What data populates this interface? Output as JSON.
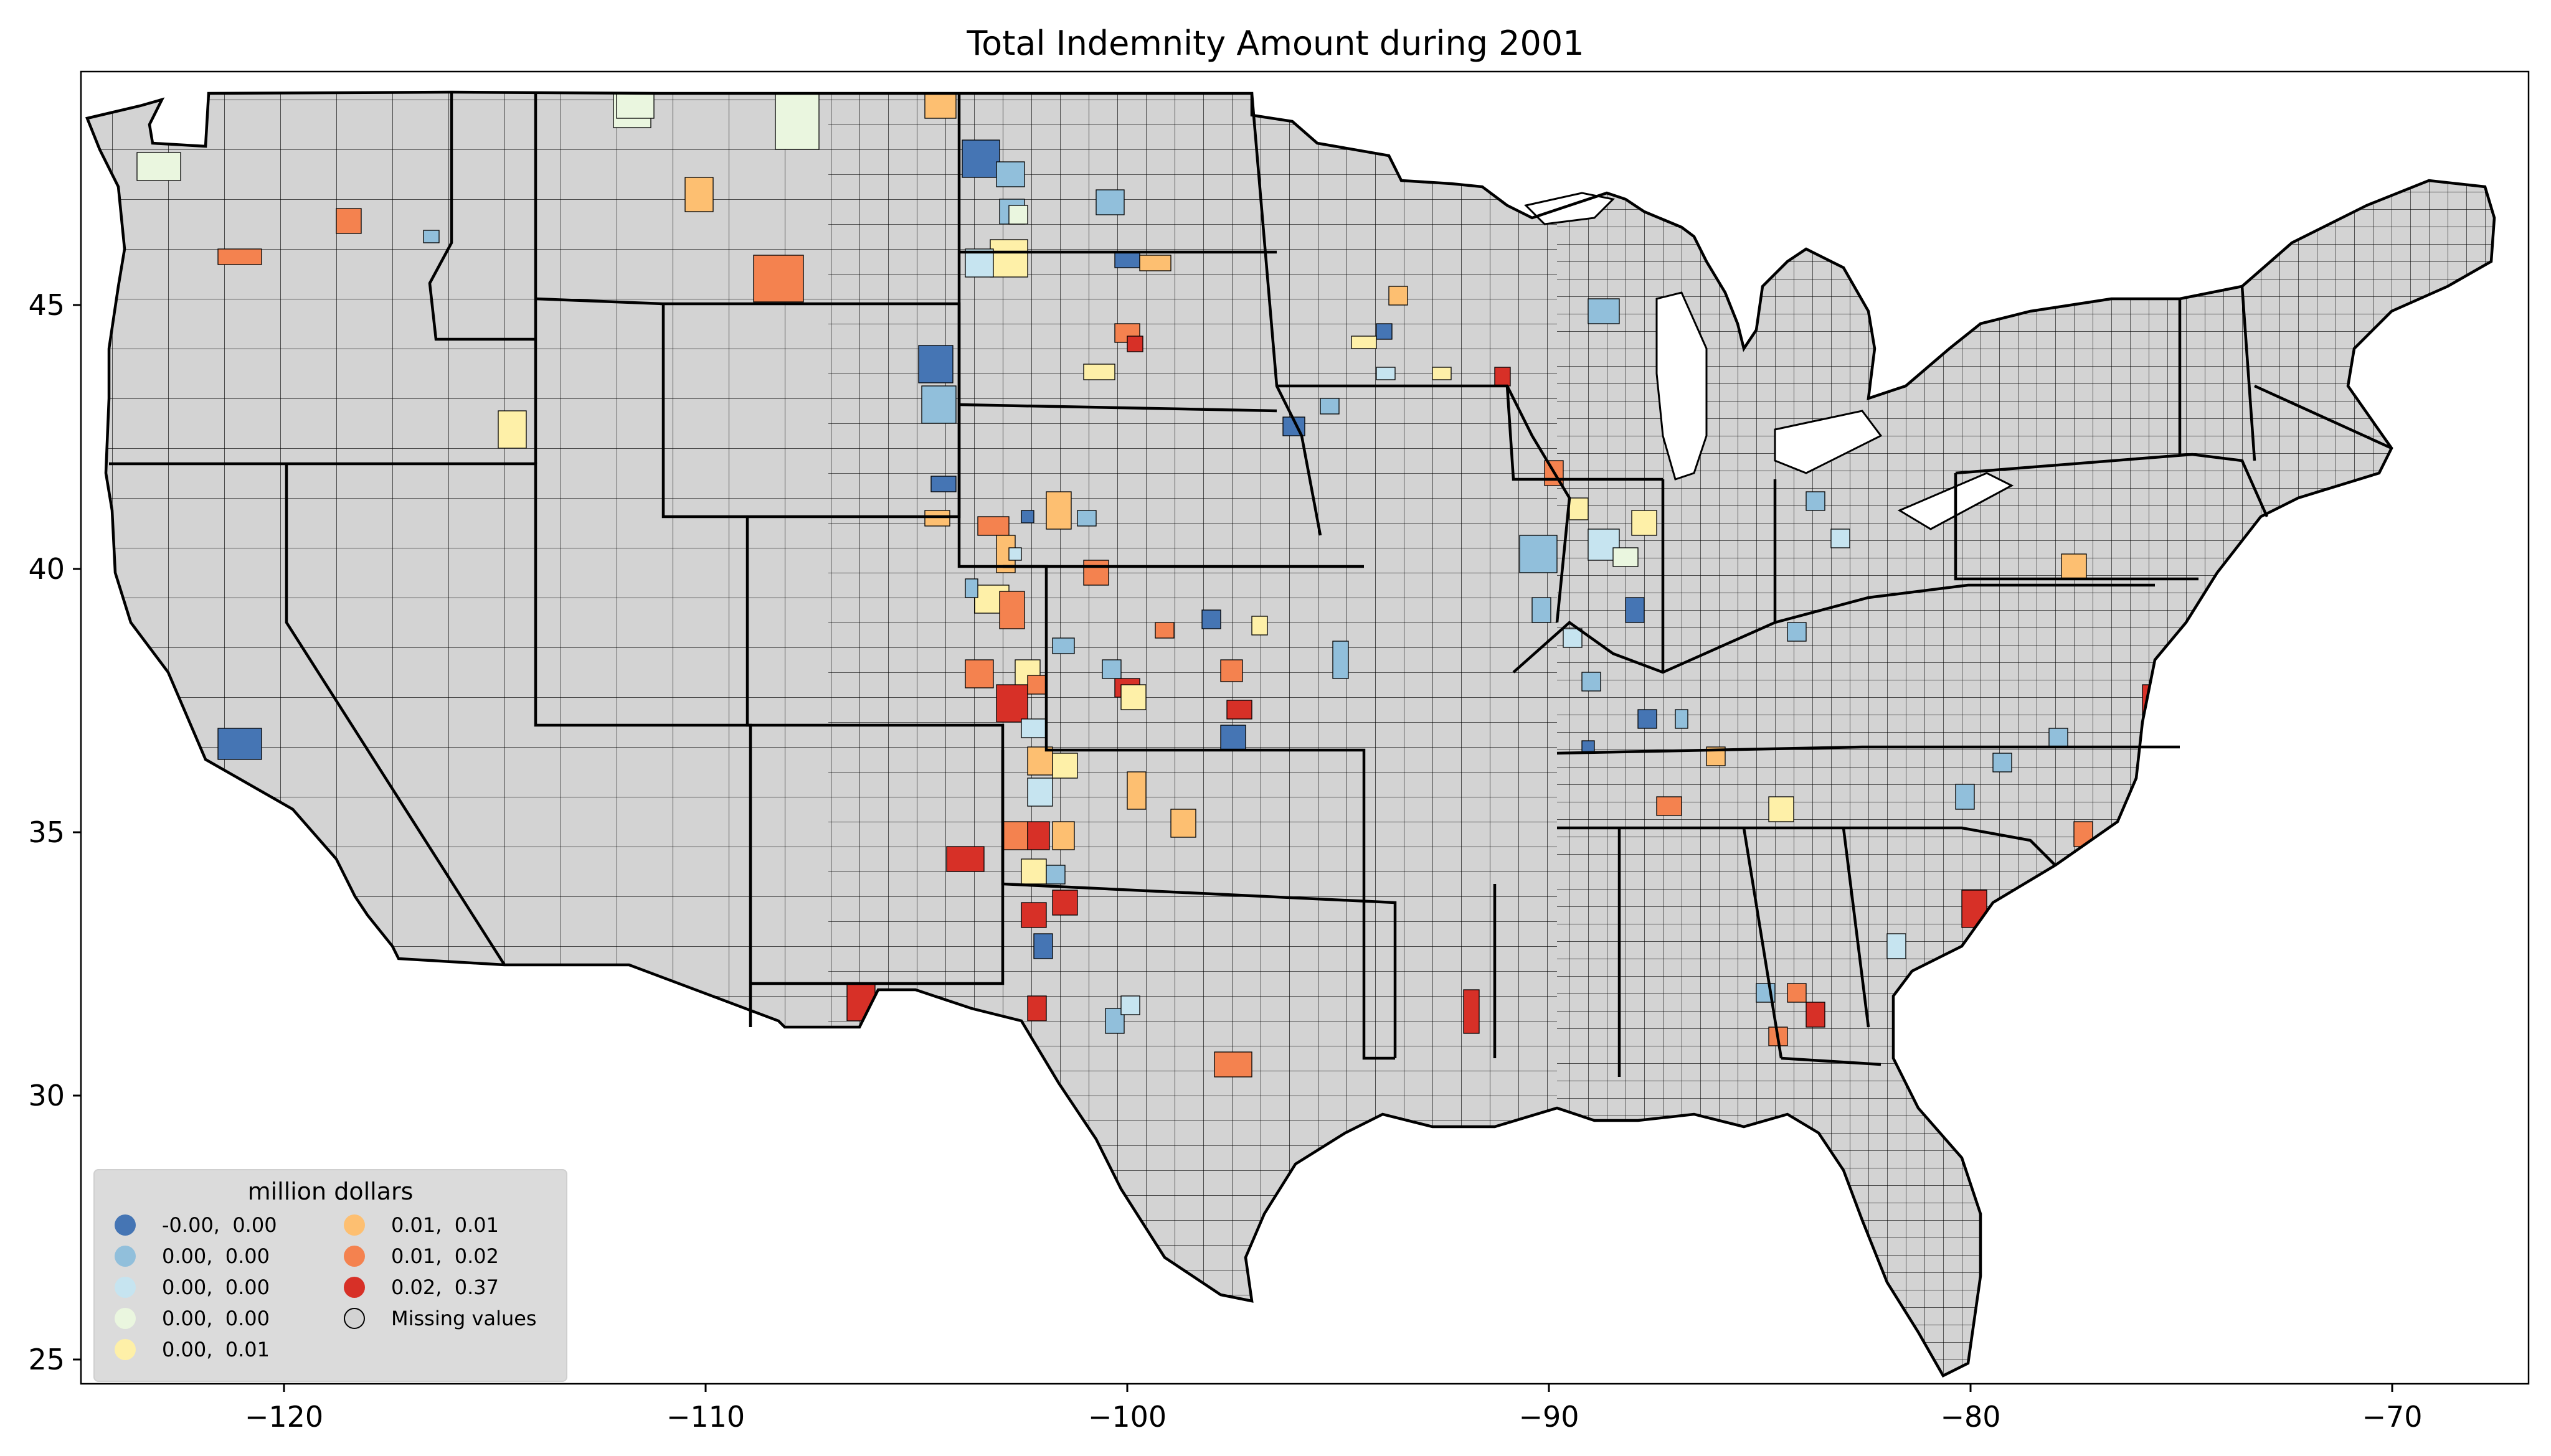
{
  "title": "Total Indemnity Amount during 2001",
  "x_ticks": [
    "−120",
    "−110",
    "−100",
    "−90",
    "−80",
    "−70"
  ],
  "y_ticks": [
    "45",
    "40",
    "35",
    "30",
    "25"
  ],
  "legend": {
    "title": "million dollars",
    "items": [
      {
        "label": "-0.00,  0.00",
        "color": "#4575b4"
      },
      {
        "label": "0.00,  0.00",
        "color": "#91bfdb"
      },
      {
        "label": "0.00,  0.00",
        "color": "#c6e4f0"
      },
      {
        "label": "0.00,  0.00",
        "color": "#eaf6df"
      },
      {
        "label": "0.00,  0.01",
        "color": "#fef0a8"
      },
      {
        "label": "0.01,  0.01",
        "color": "#fdbf71"
      },
      {
        "label": "0.01,  0.02",
        "color": "#f4824f"
      },
      {
        "label": "0.02,  0.37",
        "color": "#d73027"
      },
      {
        "label": "Missing values",
        "color": "#d3d3d3"
      }
    ]
  },
  "colors": {
    "missing": "#d3d3d3",
    "county_edge": "#000000",
    "bins": [
      "#4575b4",
      "#91bfdb",
      "#c6e4f0",
      "#eaf6df",
      "#fef0a8",
      "#fdbf71",
      "#f4824f",
      "#d73027"
    ]
  },
  "map_extent": {
    "lon": [
      -125,
      -66.5
    ],
    "lat": [
      24.5,
      49.5
    ]
  }
}
